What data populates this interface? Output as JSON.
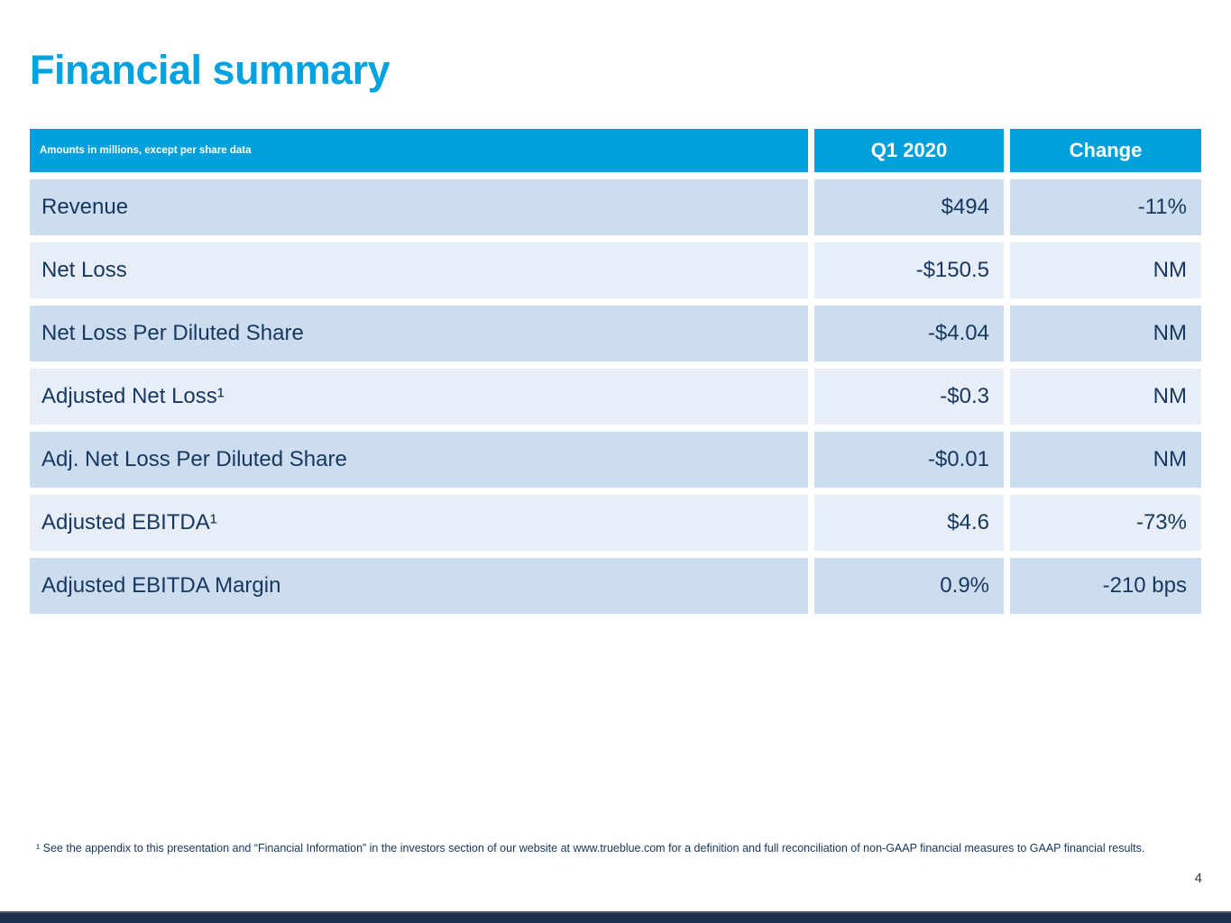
{
  "slide": {
    "title": "Financial summary",
    "page_number": "4",
    "footnote": "¹ See the appendix to this presentation and “Financial Information” in the investors section of our website at www.trueblue.com for a definition and full reconciliation of non-GAAP financial measures to GAAP financial results."
  },
  "table": {
    "note": "Amounts in millions, except per share data",
    "columns": [
      "Q1 2020",
      "Change"
    ],
    "rows": [
      {
        "label": "Revenue",
        "q1": "$494",
        "change": "-11%"
      },
      {
        "label": "Net Loss",
        "q1": "-$150.5",
        "change": "NM"
      },
      {
        "label": "Net Loss Per Diluted Share",
        "q1": "-$4.04",
        "change": "NM"
      },
      {
        "label": "Adjusted Net Loss¹",
        "q1": "-$0.3",
        "change": "NM"
      },
      {
        "label": "Adj. Net Loss Per Diluted Share",
        "q1": "-$0.01",
        "change": "NM"
      },
      {
        "label": "Adjusted EBITDA¹",
        "q1": "$4.6",
        "change": "-73%"
      },
      {
        "label": "Adjusted EBITDA Margin",
        "q1": "0.9%",
        "change": "-210 bps"
      }
    ]
  },
  "colors": {
    "accent_cyan": "#00A0DC",
    "title_cyan": "#00A2E1",
    "row_dark": "#CCDDEF",
    "row_light": "#E8EEF7",
    "text_navy": "#17375E",
    "footer_bar_navy": "#1C324B",
    "footer_bar_top_line": "#44546A"
  }
}
